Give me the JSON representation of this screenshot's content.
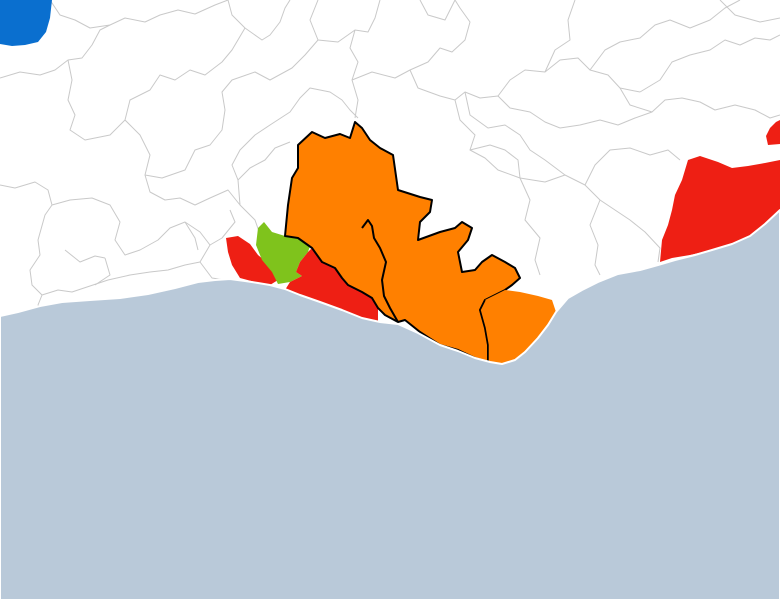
{
  "map": {
    "type": "choropleth",
    "colors": {
      "sea": "#b9c9d9",
      "land": "#ffffff",
      "ward_border": "#c9c9c9",
      "coast_edge": "#ffffff",
      "highlight_border": "#000000"
    },
    "regions": [
      {
        "id": "blue-area-northwest",
        "color": "#0a6fcf"
      },
      {
        "id": "red-area-west",
        "color": "#ee1f14"
      },
      {
        "id": "green-area",
        "color": "#7fc31c"
      },
      {
        "id": "red-area-central-coast",
        "color": "#ee1f14"
      },
      {
        "id": "orange-area-highlighted",
        "color": "#ff8000",
        "outlined": true
      },
      {
        "id": "orange-area-coastal-east",
        "color": "#ff8000"
      },
      {
        "id": "red-area-east",
        "color": "#ee1f14"
      }
    ]
  }
}
